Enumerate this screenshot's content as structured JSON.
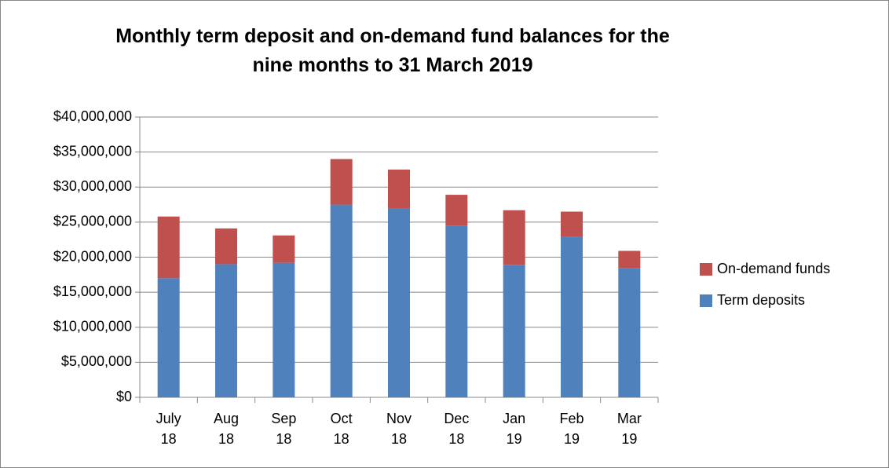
{
  "chart_data": {
    "type": "stacked_bar",
    "title": "Monthly term deposit and on-demand fund balances for the nine months to 31 March 2019",
    "categories": [
      "July 18",
      "Aug 18",
      "Sep 18",
      "Oct 18",
      "Nov 18",
      "Dec 18",
      "Jan 19",
      "Feb 19",
      "Mar 19"
    ],
    "series": [
      {
        "name": "Term deposits",
        "color": "#4f81bd",
        "values": [
          17000000,
          19000000,
          19200000,
          27500000,
          27000000,
          24500000,
          18900000,
          22900000,
          18400000
        ]
      },
      {
        "name": "On-demand funds",
        "color": "#c0504d",
        "values": [
          8800000,
          5100000,
          3900000,
          6500000,
          5500000,
          4400000,
          7800000,
          3600000,
          2500000
        ]
      }
    ],
    "ylim": [
      0,
      40000000
    ],
    "yticks": [
      {
        "value": 0,
        "label": "$0"
      },
      {
        "value": 5000000,
        "label": "$5,000,000"
      },
      {
        "value": 10000000,
        "label": "$10,000,000"
      },
      {
        "value": 15000000,
        "label": "$15,000,000"
      },
      {
        "value": 20000000,
        "label": "$20,000,000"
      },
      {
        "value": 25000000,
        "label": "$25,000,000"
      },
      {
        "value": 30000000,
        "label": "$30,000,000"
      },
      {
        "value": 35000000,
        "label": "$35,000,000"
      },
      {
        "value": 40000000,
        "label": "$40,000,000"
      }
    ],
    "grid": true,
    "legend": "right"
  }
}
